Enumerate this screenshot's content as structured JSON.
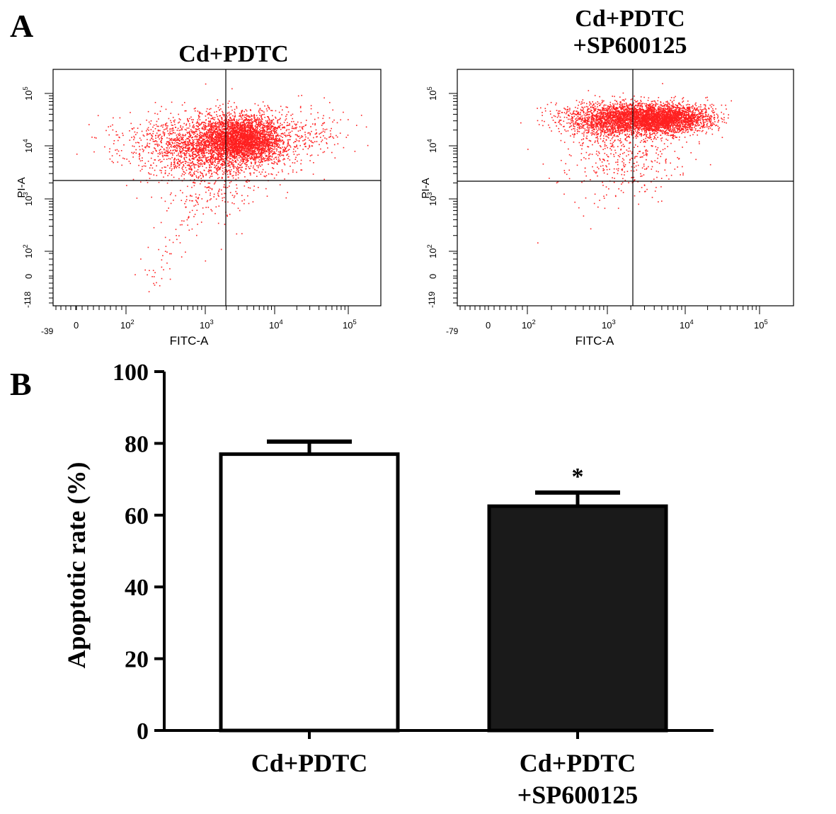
{
  "panel_a": {
    "letter": "A",
    "plots": [
      {
        "title_lines": [
          "Cd+PDTC"
        ],
        "xlabel": "FITC-A",
        "ylabel": "PI-A",
        "x_min_label": "-39",
        "y_min_label": "-118",
        "x_ticks": [
          "0",
          "10^2",
          "10^3",
          "10^4",
          "10^5"
        ],
        "y_ticks": [
          "0",
          "10^2",
          "10^3",
          "10^4",
          "10^5"
        ],
        "point_color": "#ff2020"
      },
      {
        "title_lines": [
          "Cd+PDTC",
          "+SP600125"
        ],
        "xlabel": "FITC-A",
        "ylabel": "PI-A",
        "x_min_label": "-79",
        "y_min_label": "-119",
        "x_ticks": [
          "0",
          "10^2",
          "10^3",
          "10^4",
          "10^5"
        ],
        "y_ticks": [
          "0",
          "10^2",
          "10^3",
          "10^4",
          "10^5"
        ],
        "point_color": "#ff2020"
      }
    ]
  },
  "panel_b": {
    "letter": "B"
  },
  "chart_data": {
    "type": "bar",
    "categories": [
      "Cd+PDTC",
      "Cd+PDTC\n+SP600125"
    ],
    "values": [
      77,
      62.5
    ],
    "errors": [
      3.5,
      3.8
    ],
    "bar_colors": [
      "#ffffff",
      "#1a1a1a"
    ],
    "annotations": [
      "",
      "*"
    ],
    "ylabel": "Apoptotic rate (%)",
    "xlabel": "",
    "ylim": [
      0,
      100
    ],
    "yticks": [
      0,
      20,
      40,
      60,
      80,
      100
    ],
    "grid": false
  }
}
